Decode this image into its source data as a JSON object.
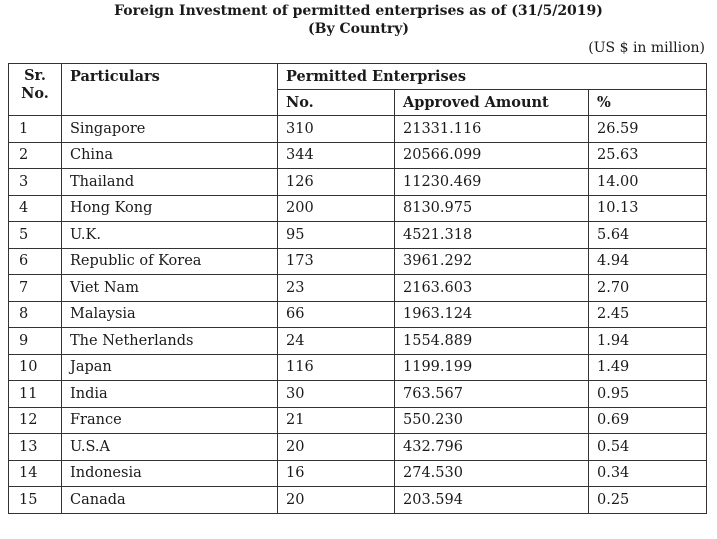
{
  "title": "Foreign Investment of permitted enterprises as of (31/5/2019)",
  "subtitle": "(By Country)",
  "unit": "(US $ in million)",
  "headers": {
    "sr": "Sr. No.",
    "particulars": "Particulars",
    "group": "Permitted Enterprises",
    "no": "No.",
    "amount": "Approved Amount",
    "pct": "%"
  },
  "rows": [
    {
      "sr": "1",
      "country": "Singapore",
      "no": "310",
      "amount": "21331.116",
      "pct": "26.59"
    },
    {
      "sr": "2",
      "country": "China",
      "no": "344",
      "amount": "20566.099",
      "pct": "25.63"
    },
    {
      "sr": "3",
      "country": "Thailand",
      "no": "126",
      "amount": "11230.469",
      "pct": "14.00"
    },
    {
      "sr": "4",
      "country": "Hong Kong",
      "no": "200",
      "amount": "8130.975",
      "pct": "10.13"
    },
    {
      "sr": "5",
      "country": "U.K.",
      "no": "95",
      "amount": "4521.318",
      "pct": "5.64"
    },
    {
      "sr": "6",
      "country": "Republic of Korea",
      "no": "173",
      "amount": "3961.292",
      "pct": "4.94"
    },
    {
      "sr": "7",
      "country": "Viet Nam",
      "no": "23",
      "amount": "2163.603",
      "pct": "2.70"
    },
    {
      "sr": "8",
      "country": "Malaysia",
      "no": "66",
      "amount": "1963.124",
      "pct": "2.45"
    },
    {
      "sr": "9",
      "country": "The Netherlands",
      "no": "24",
      "amount": "1554.889",
      "pct": "1.94"
    },
    {
      "sr": "10",
      "country": "Japan",
      "no": "116",
      "amount": "1199.199",
      "pct": "1.49"
    },
    {
      "sr": "11",
      "country": "India",
      "no": "30",
      "amount": "763.567",
      "pct": "0.95"
    },
    {
      "sr": "12",
      "country": "France",
      "no": "21",
      "amount": "550.230",
      "pct": "0.69"
    },
    {
      "sr": "13",
      "country": "U.S.A",
      "no": "20",
      "amount": "432.796",
      "pct": "0.54"
    },
    {
      "sr": "14",
      "country": "Indonesia",
      "no": "16",
      "amount": "274.530",
      "pct": "0.34"
    },
    {
      "sr": "15",
      "country": "Canada",
      "no": "20",
      "amount": "203.594",
      "pct": "0.25"
    }
  ]
}
